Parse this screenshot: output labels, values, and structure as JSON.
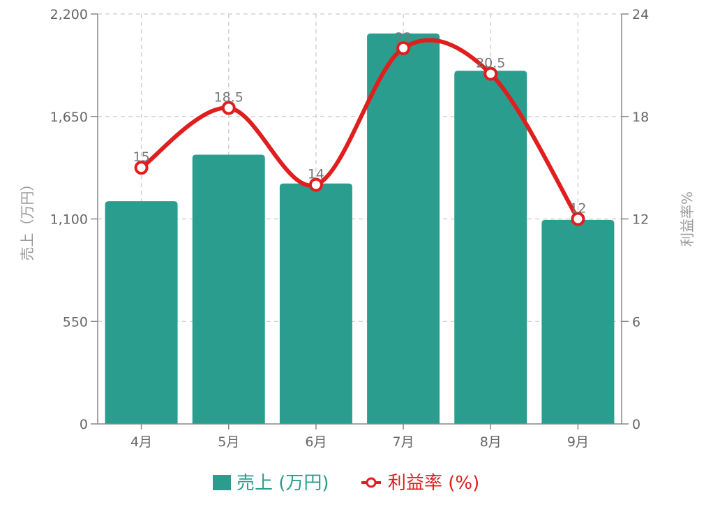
{
  "chart_data": {
    "type": "bar",
    "categories": [
      "4月",
      "5月",
      "6月",
      "7月",
      "8月",
      "9月"
    ],
    "series": [
      {
        "name": "売上 (万円)",
        "type": "bar",
        "axis": "left",
        "color": "#2a9d8f",
        "values": [
          1195,
          1445,
          1290,
          2095,
          1895,
          1095
        ]
      },
      {
        "name": "利益率 (%)",
        "type": "line",
        "axis": "right",
        "color": "#e01e1e",
        "smooth": true,
        "values": [
          15,
          18.5,
          14,
          22,
          20.5,
          12
        ],
        "data_labels": [
          "15",
          "18.5",
          "14",
          "22",
          "20.5",
          "12"
        ]
      }
    ],
    "ylabel": "売上（万円）",
    "ylabel_right": "利益率%",
    "ylim": [
      0,
      2200
    ],
    "ylim_right": [
      0,
      24
    ],
    "yticks": [
      0,
      550,
      1100,
      1650,
      2200
    ],
    "yticks_labels": [
      "0",
      "550",
      "1,100",
      "1,650",
      "2,200"
    ],
    "yticks_right": [
      0,
      6,
      12,
      18,
      24
    ],
    "grid": true,
    "legend_position": "bottom"
  }
}
